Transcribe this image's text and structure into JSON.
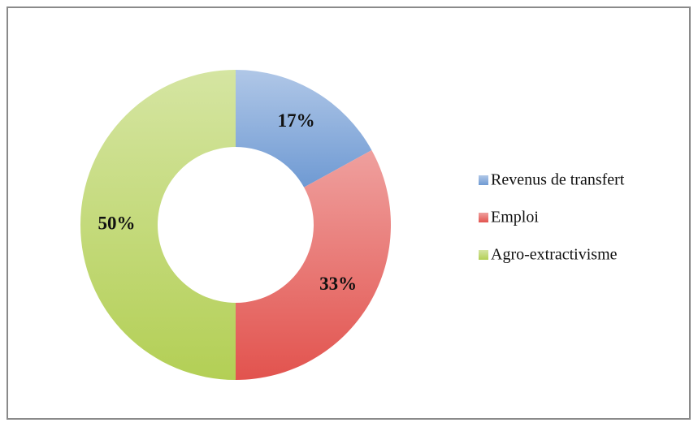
{
  "chart_data": {
    "type": "donut",
    "categories": [
      "Revenus de transfert",
      "Emploi",
      "Agro-extractivisme"
    ],
    "values": [
      17,
      33,
      50
    ],
    "value_labels": [
      "17%",
      "33%",
      "50%"
    ],
    "colors": [
      "#6f9ad3",
      "#e2534e",
      "#b3cf55"
    ],
    "legend": "right"
  }
}
